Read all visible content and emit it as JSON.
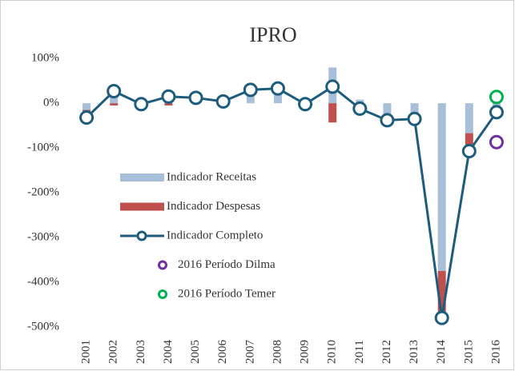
{
  "chart_data": {
    "type": "combo",
    "title": "IPRO",
    "categories": [
      "2001",
      "2002",
      "2003",
      "2004",
      "2005",
      "2006",
      "2007",
      "2008",
      "2009",
      "2010",
      "2011",
      "2012",
      "2013",
      "2014",
      "2015",
      "2016"
    ],
    "series": [
      {
        "name": "Indicador Receitas",
        "kind": "bar",
        "color": "#a7bfd9",
        "values": [
          -15,
          20,
          -3,
          10,
          8,
          3,
          28,
          30,
          -3,
          80,
          8,
          -35,
          -30,
          -375,
          -67,
          -20
        ]
      },
      {
        "name": "Indicador Despesas",
        "kind": "bar",
        "color": "#c0504d",
        "values": [
          -15,
          -5,
          0,
          -5,
          0,
          0,
          2,
          2,
          0,
          -43,
          -10,
          -5,
          -5,
          -105,
          -40,
          -2
        ]
      },
      {
        "name": "Indicador Completo",
        "kind": "line",
        "color": "#1d5c7c",
        "values": [
          -32,
          27,
          -2,
          15,
          12,
          4,
          30,
          33,
          -2,
          37,
          -12,
          -38,
          -35,
          -480,
          -107,
          -20
        ]
      },
      {
        "name": "2016 Período Dilma",
        "kind": "point",
        "color": "#7030a0",
        "values": [
          null,
          null,
          null,
          null,
          null,
          null,
          null,
          null,
          null,
          null,
          null,
          null,
          null,
          null,
          null,
          -87
        ]
      },
      {
        "name": "2016 Período Temer",
        "kind": "point",
        "color": "#00b050",
        "values": [
          null,
          null,
          null,
          null,
          null,
          null,
          null,
          null,
          null,
          null,
          null,
          null,
          null,
          null,
          null,
          14
        ]
      }
    ],
    "ylim": [
      -520,
      120
    ],
    "yticks": [
      {
        "value": 100,
        "label": "100%"
      },
      {
        "value": 0,
        "label": "0%"
      },
      {
        "value": -100,
        "label": "-100%"
      },
      {
        "value": -200,
        "label": "-200%"
      },
      {
        "value": -300,
        "label": "-300%"
      },
      {
        "value": -400,
        "label": "-400%"
      },
      {
        "value": -500,
        "label": "-500%"
      }
    ],
    "grid": false
  }
}
